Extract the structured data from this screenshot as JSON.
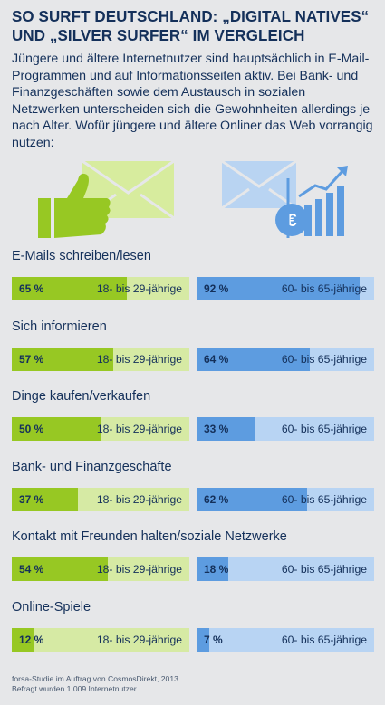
{
  "header": {
    "title_line1": "SO SURFT DEUTSCHLAND: „DIGITAL NATIVES“",
    "title_line2": "UND „SILVER SURFER“ IM VERGLEICH",
    "intro": "Jüngere und ältere Internetnutzer sind hauptsächlich in E-Mail-Programmen und auf Informationsseiten aktiv. Bei Bank- und Finanzgeschäften sowie dem Austausch in sozialen Netzwerken unterscheiden sich die Gewohnheiten allerdings je nach Alter. Wofür jüngere und ältere Onliner das Web vorrangig nutzen:"
  },
  "icons": {
    "young": "thumbs-up-envelope-icon",
    "old": "envelope-euro-chart-icon"
  },
  "colors": {
    "young_fill": "#97c823",
    "young_track": "#d6eaa4",
    "old_fill": "#5d9ce0",
    "old_track": "#b8d4f3",
    "background": "#e6e7e9"
  },
  "chart_data": {
    "type": "bar",
    "orientation": "horizontal",
    "categories": [
      "E-Mails schreiben/lesen",
      "Sich informieren",
      "Dinge kaufen/verkaufen",
      "Bank- und Finanzgeschäfte",
      "Kontakt mit Freunden halten/soziale Netzwerke",
      "Online-Spiele"
    ],
    "unit": "%",
    "xlim": [
      0,
      100
    ],
    "series": [
      {
        "name": "18- bis 29-jährige",
        "values": [
          65,
          57,
          50,
          37,
          54,
          12
        ]
      },
      {
        "name": "60- bis 65-jährige",
        "values": [
          92,
          64,
          33,
          62,
          18,
          7
        ]
      }
    ]
  },
  "source": {
    "line1": "forsa-Studie im Auftrag von CosmosDirekt, 2013.",
    "line2": "Befragt wurden 1.009 Internetnutzer."
  }
}
